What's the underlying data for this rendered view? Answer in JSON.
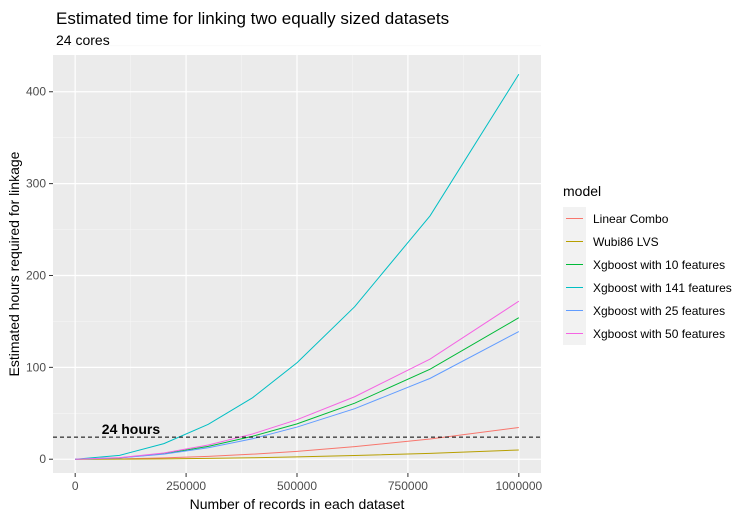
{
  "chart_data": {
    "type": "line",
    "title": "Estimated time for linking two equally sized datasets",
    "subtitle": "24 cores",
    "xlabel": "Number of records in each dataset",
    "ylabel": "Estimated hours required for linkage",
    "xlim": [
      -50000,
      1050000
    ],
    "ylim": [
      -15,
      440
    ],
    "x_ticks": [
      0,
      250000,
      500000,
      750000,
      1000000
    ],
    "x_tick_labels": [
      "0",
      "250000",
      "500000",
      "750000",
      "1000000"
    ],
    "y_ticks": [
      0,
      100,
      200,
      300,
      400
    ],
    "y_tick_labels": [
      "0",
      "100",
      "200",
      "300",
      "400"
    ],
    "grid": true,
    "legend": {
      "title": "model",
      "placement": "right"
    },
    "reference_line": {
      "y": 24,
      "style": "dashed",
      "label": "24 hours"
    },
    "x": [
      0,
      100000,
      200000,
      300000,
      400000,
      500000,
      630000,
      800000,
      1000000
    ],
    "series": [
      {
        "name": "Linear Combo",
        "color": "#F8766D",
        "values": [
          0,
          0.3,
          1.4,
          3.1,
          5.5,
          8.6,
          13.7,
          22,
          34.5
        ]
      },
      {
        "name": "Wubi86 LVS",
        "color": "#B79F00",
        "values": [
          0,
          0.1,
          0.4,
          0.9,
          1.6,
          2.5,
          4.0,
          6.4,
          10
        ]
      },
      {
        "name": "Xgboost with 10 features",
        "color": "#00BA38",
        "values": [
          0,
          1.5,
          6,
          14,
          25,
          38.5,
          61,
          98,
          154
        ]
      },
      {
        "name": "Xgboost with 141 features",
        "color": "#00BFC4",
        "values": [
          0,
          4.2,
          17,
          38,
          67,
          105,
          166,
          265,
          419
        ]
      },
      {
        "name": "Xgboost with 25 features",
        "color": "#619CFF",
        "values": [
          0,
          1.4,
          5.5,
          12.5,
          22.3,
          35,
          55,
          88,
          139
        ]
      },
      {
        "name": "Xgboost with 50 features",
        "color": "#F564E3",
        "values": [
          0,
          1.7,
          6.8,
          15.5,
          27.5,
          43,
          68,
          109,
          172
        ]
      }
    ]
  }
}
